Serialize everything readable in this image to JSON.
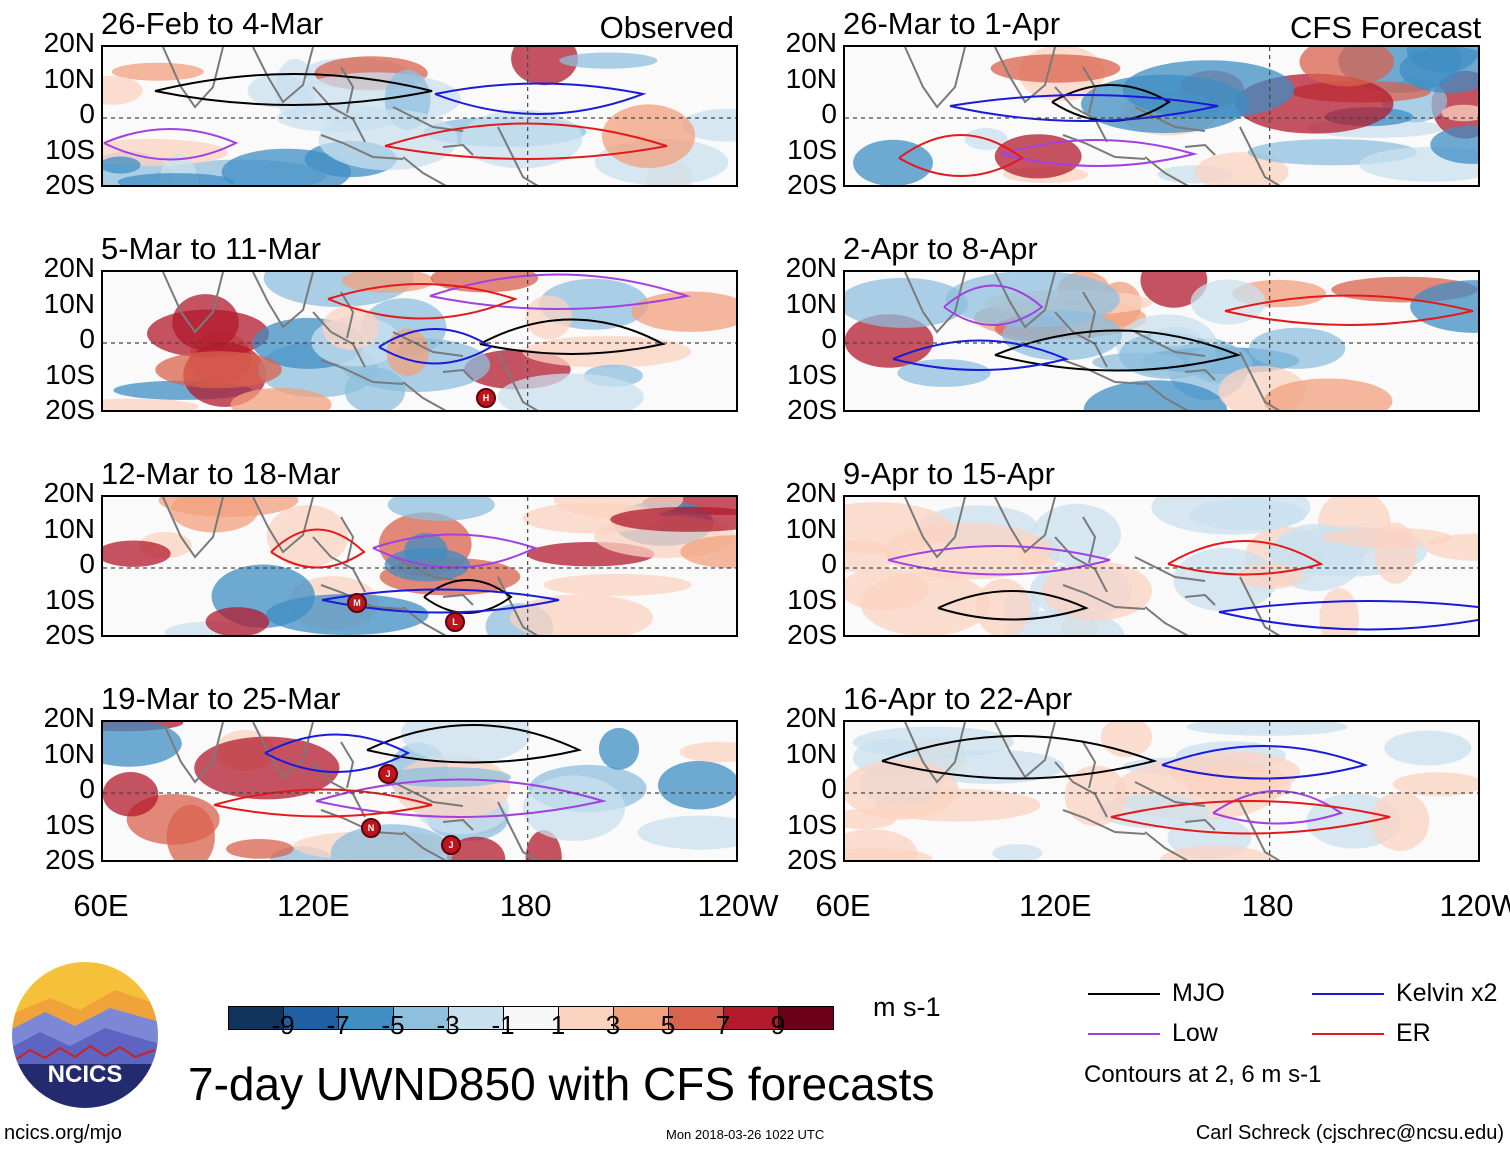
{
  "chart_data": {
    "type": "heatmap",
    "title": "7-day UWND850 with CFS forecasts",
    "variable": "850-hPa zonal wind anomaly",
    "units": "m s-1",
    "columns": [
      {
        "header": "Observed",
        "panels": [
          "26-Feb to 4-Mar",
          "5-Mar to 11-Mar",
          "12-Mar to 18-Mar",
          "19-Mar to 25-Mar"
        ]
      },
      {
        "header": "CFS Forecast",
        "panels": [
          "26-Mar to 1-Apr",
          "2-Apr to 8-Apr",
          "9-Apr to 15-Apr",
          "16-Apr to 22-Apr"
        ]
      }
    ],
    "y_ticks": [
      "20N",
      "10N",
      "0",
      "10S",
      "20S"
    ],
    "ylim": [
      -20,
      20
    ],
    "x_ticks": [
      "60E",
      "120E",
      "180",
      "120W"
    ],
    "xlim": [
      60,
      240
    ],
    "colorbar": {
      "ticks": [
        "-9",
        "-7",
        "-5",
        "-3",
        "-1",
        "1",
        "3",
        "5",
        "7",
        "9"
      ],
      "colors": [
        "#10345e",
        "#1f5fa4",
        "#3f8ec4",
        "#8ebfdd",
        "#c9e0ef",
        "#f7f7f7",
        "#fbd3c1",
        "#f1a07e",
        "#d9614d",
        "#b31a2c",
        "#6b0018"
      ]
    },
    "contours": {
      "legend": [
        {
          "label": "MJO",
          "color": "#000000"
        },
        {
          "label": "Low",
          "color": "#a341e0"
        },
        {
          "label": "Kelvin x2",
          "color": "#1a1adb"
        },
        {
          "label": "ER",
          "color": "#e41a1a"
        }
      ],
      "note": "Contours at 2, 6 m s-1"
    },
    "storm_markers": [
      {
        "panel": "5-Mar to 11-Mar",
        "letter": "H"
      },
      {
        "panel": "12-Mar to 18-Mar",
        "letter": "M"
      },
      {
        "panel": "12-Mar to 18-Mar",
        "letter": "L"
      },
      {
        "panel": "19-Mar to 25-Mar",
        "letter": "J"
      },
      {
        "panel": "19-Mar to 25-Mar",
        "letter": "N"
      },
      {
        "panel": "19-Mar to 25-Mar",
        "letter": "J"
      }
    ]
  },
  "footer": {
    "logo_text": "NCICS",
    "url": "ncics.org/mjo",
    "timestamp": "Mon 2018-03-26 1022 UTC",
    "credit": "Carl Schreck (cjschrec@ncsu.edu)"
  }
}
